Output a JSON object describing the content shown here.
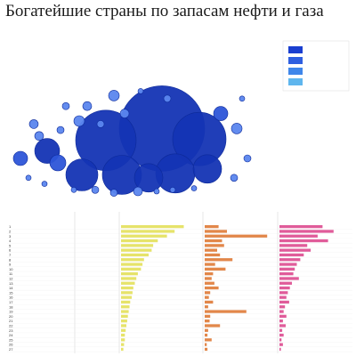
{
  "title": "Богатейшие страны по запасам нефти и газа",
  "subtitle": "",
  "bubble_caption": "",
  "colors": {
    "bubble_dark": "#1434b4",
    "bubble_mid": "#2d55d8",
    "bubble_light": "#5b86ee",
    "bubble_stroke": "#0d2a9a",
    "legend_1": "#1a3fd0",
    "legend_2": "#2e5fe0",
    "legend_3": "#3f86ea",
    "legend_4": "#5fb6ee",
    "bar_yellow": "#e6e36a",
    "bar_orange": "#e2874a",
    "bar_pink": "#e05c9a",
    "grid": "#cfcfcf"
  },
  "chart_data": [
    {
      "type": "scatter",
      "bubbles": [
        {
          "x": 0.58,
          "y": 0.55,
          "r": 48
        },
        {
          "x": 0.37,
          "y": 0.63,
          "r": 34
        },
        {
          "x": 0.72,
          "y": 0.62,
          "r": 30
        },
        {
          "x": 0.43,
          "y": 0.86,
          "r": 22
        },
        {
          "x": 0.53,
          "y": 0.88,
          "r": 16
        },
        {
          "x": 0.63,
          "y": 0.85,
          "r": 22
        },
        {
          "x": 0.75,
          "y": 0.82,
          "r": 16
        },
        {
          "x": 0.28,
          "y": 0.86,
          "r": 18
        },
        {
          "x": 0.15,
          "y": 0.7,
          "r": 14
        },
        {
          "x": 0.19,
          "y": 0.78,
          "r": 9
        },
        {
          "x": 0.05,
          "y": 0.75,
          "r": 8
        },
        {
          "x": 0.1,
          "y": 0.52,
          "r": 5
        },
        {
          "x": 0.2,
          "y": 0.56,
          "r": 4
        },
        {
          "x": 0.27,
          "y": 0.5,
          "r": 6
        },
        {
          "x": 0.3,
          "y": 0.4,
          "r": 5
        },
        {
          "x": 0.4,
          "y": 0.33,
          "r": 6
        },
        {
          "x": 0.44,
          "y": 0.45,
          "r": 5
        },
        {
          "x": 0.22,
          "y": 0.4,
          "r": 4
        },
        {
          "x": 0.12,
          "y": 0.6,
          "r": 5
        },
        {
          "x": 0.8,
          "y": 0.45,
          "r": 8
        },
        {
          "x": 0.86,
          "y": 0.55,
          "r": 6
        },
        {
          "x": 0.9,
          "y": 0.75,
          "r": 4
        },
        {
          "x": 0.85,
          "y": 0.88,
          "r": 4
        },
        {
          "x": 0.88,
          "y": 0.35,
          "r": 3
        },
        {
          "x": 0.6,
          "y": 0.35,
          "r": 4
        },
        {
          "x": 0.5,
          "y": 0.3,
          "r": 3
        },
        {
          "x": 0.35,
          "y": 0.52,
          "r": 4
        },
        {
          "x": 0.33,
          "y": 0.96,
          "r": 4
        },
        {
          "x": 0.4,
          "y": 0.98,
          "r": 4
        },
        {
          "x": 0.49,
          "y": 0.97,
          "r": 5
        },
        {
          "x": 0.56,
          "y": 0.97,
          "r": 3
        },
        {
          "x": 0.62,
          "y": 0.96,
          "r": 3
        },
        {
          "x": 0.7,
          "y": 0.95,
          "r": 3
        },
        {
          "x": 0.08,
          "y": 0.88,
          "r": 3
        },
        {
          "x": 0.14,
          "y": 0.92,
          "r": 3
        },
        {
          "x": 0.25,
          "y": 0.96,
          "r": 3
        }
      ],
      "legend": [
        "",
        "",
        "",
        ""
      ]
    },
    {
      "type": "table",
      "columns": [
        "",
        "",
        "",
        "",
        "",
        "",
        ""
      ],
      "rows": [
        {
          "rank": "1",
          "country": "",
          "v1": 0.82,
          "v2": 0.2,
          "v3": 0.62
        },
        {
          "rank": "2",
          "country": "",
          "v1": 0.7,
          "v2": 0.32,
          "v3": 0.78
        },
        {
          "rank": "3",
          "country": "",
          "v1": 0.6,
          "v2": 0.9,
          "v3": 0.55
        },
        {
          "rank": "4",
          "country": "",
          "v1": 0.48,
          "v2": 0.25,
          "v3": 0.7
        },
        {
          "rank": "5",
          "country": "",
          "v1": 0.42,
          "v2": 0.28,
          "v3": 0.4
        },
        {
          "rank": "6",
          "country": "",
          "v1": 0.4,
          "v2": 0.18,
          "v3": 0.45
        },
        {
          "rank": "7",
          "country": "",
          "v1": 0.36,
          "v2": 0.22,
          "v3": 0.35
        },
        {
          "rank": "8",
          "country": "",
          "v1": 0.3,
          "v2": 0.4,
          "v3": 0.3
        },
        {
          "rank": "9",
          "country": "",
          "v1": 0.28,
          "v2": 0.15,
          "v3": 0.25
        },
        {
          "rank": "10",
          "country": "",
          "v1": 0.26,
          "v2": 0.3,
          "v3": 0.22
        },
        {
          "rank": "11",
          "country": "",
          "v1": 0.22,
          "v2": 0.12,
          "v3": 0.2
        },
        {
          "rank": "12",
          "country": "",
          "v1": 0.2,
          "v2": 0.1,
          "v3": 0.28
        },
        {
          "rank": "13",
          "country": "",
          "v1": 0.18,
          "v2": 0.14,
          "v3": 0.18
        },
        {
          "rank": "14",
          "country": "",
          "v1": 0.16,
          "v2": 0.2,
          "v3": 0.15
        },
        {
          "rank": "15",
          "country": "",
          "v1": 0.15,
          "v2": 0.08,
          "v3": 0.12
        },
        {
          "rank": "16",
          "country": "",
          "v1": 0.14,
          "v2": 0.06,
          "v3": 0.1
        },
        {
          "rank": "17",
          "country": "",
          "v1": 0.12,
          "v2": 0.12,
          "v3": 0.14
        },
        {
          "rank": "18",
          "country": "",
          "v1": 0.11,
          "v2": 0.05,
          "v3": 0.08
        },
        {
          "rank": "19",
          "country": "",
          "v1": 0.1,
          "v2": 0.6,
          "v3": 0.06
        },
        {
          "rank": "20",
          "country": "",
          "v1": 0.09,
          "v2": 0.08,
          "v3": 0.1
        },
        {
          "rank": "21",
          "country": "",
          "v1": 0.08,
          "v2": 0.07,
          "v3": 0.05
        },
        {
          "rank": "22",
          "country": "",
          "v1": 0.07,
          "v2": 0.22,
          "v3": 0.09
        },
        {
          "rank": "23",
          "country": "",
          "v1": 0.06,
          "v2": 0.05,
          "v3": 0.04
        },
        {
          "rank": "24",
          "country": "",
          "v1": 0.05,
          "v2": 0.04,
          "v3": 0.06
        },
        {
          "rank": "25",
          "country": "",
          "v1": 0.05,
          "v2": 0.1,
          "v3": 0.03
        },
        {
          "rank": "26",
          "country": "",
          "v1": 0.04,
          "v2": 0.03,
          "v3": 0.05
        },
        {
          "rank": "27",
          "country": "",
          "v1": 0.03,
          "v2": 0.04,
          "v3": 0.02
        }
      ]
    }
  ]
}
